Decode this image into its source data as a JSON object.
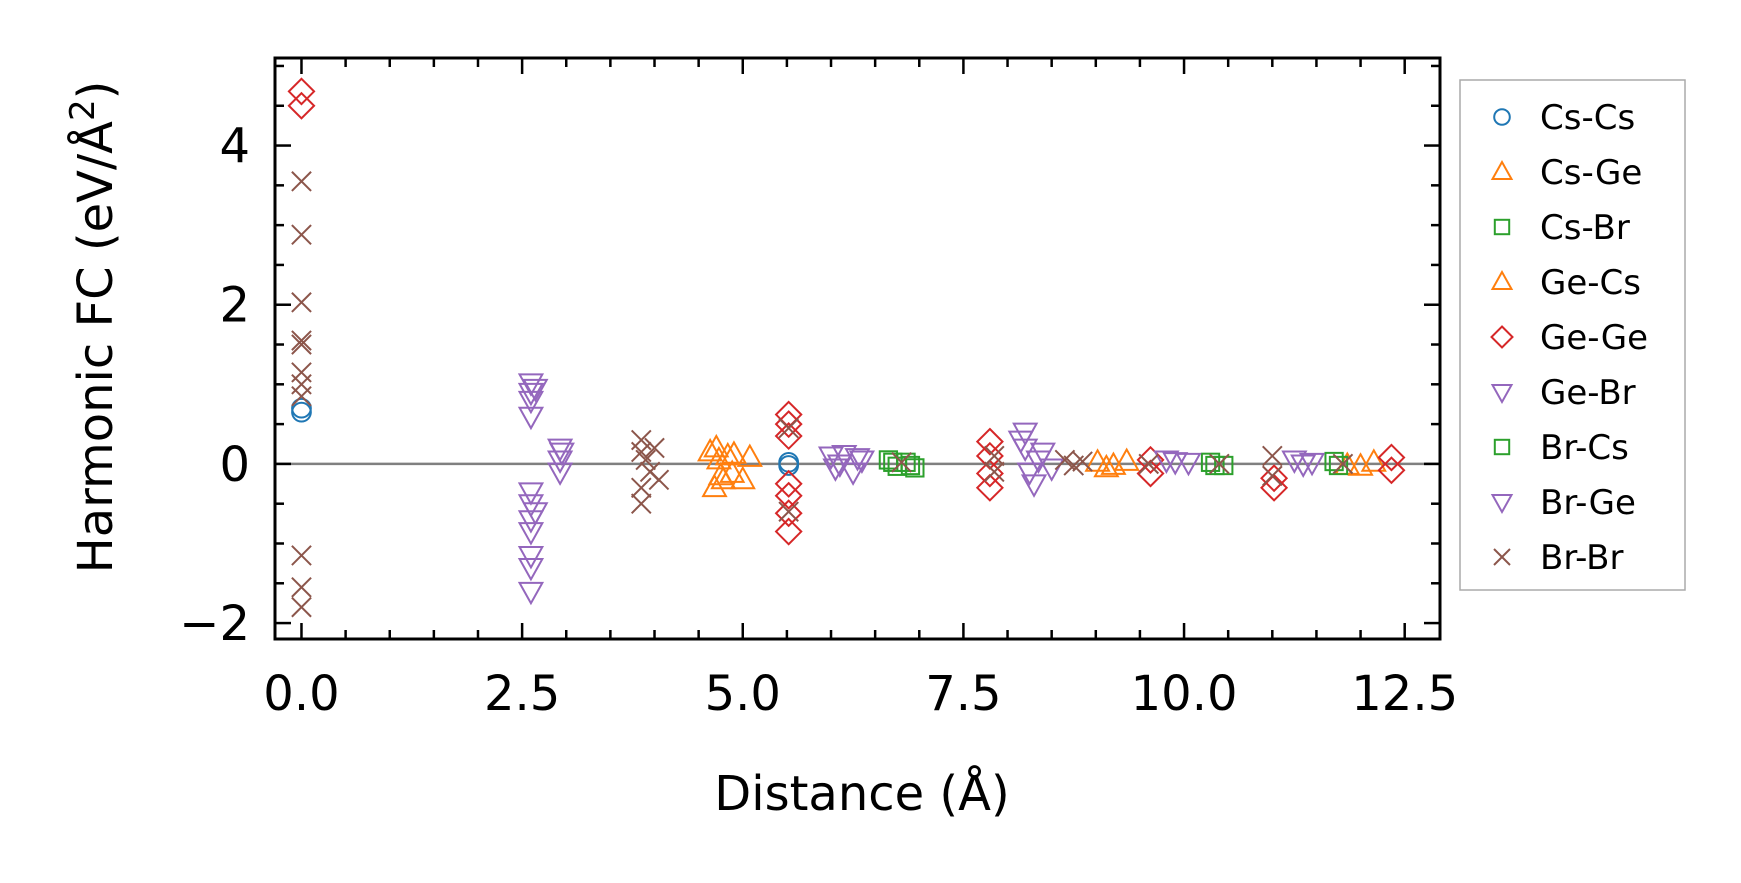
{
  "chart_data": {
    "type": "scatter",
    "title": "",
    "xlabel": "Distance (Å)",
    "ylabel_main": "Harmonic FC (eV/Å",
    "ylabel_sup": "2",
    "ylabel_end": ")",
    "xlim": [
      -0.3,
      12.9
    ],
    "ylim": [
      -2.2,
      5.1
    ],
    "xticks": [
      0.0,
      2.5,
      5.0,
      7.5,
      10.0,
      12.5
    ],
    "xtick_labels": [
      "0.0",
      "2.5",
      "5.0",
      "7.5",
      "10.0",
      "12.5"
    ],
    "yticks": [
      -2,
      0,
      2,
      4
    ],
    "ytick_labels": [
      "−2",
      "0",
      "2",
      "4"
    ],
    "zero_line": 0,
    "legend_position": "outside right",
    "series": [
      {
        "name": "Cs-Cs",
        "marker": "circle",
        "color": "#1f77b4",
        "points": [
          [
            0.0,
            0.65
          ],
          [
            0.0,
            0.7
          ],
          [
            5.52,
            0.02
          ],
          [
            5.52,
            -0.02
          ]
        ]
      },
      {
        "name": "Cs-Ge",
        "marker": "triangle-up",
        "color": "#ff7f0e",
        "points": [
          [
            4.63,
            0.15
          ],
          [
            4.68,
            -0.3
          ],
          [
            4.73,
            0.05
          ],
          [
            4.78,
            -0.2
          ],
          [
            4.83,
            0.1
          ],
          [
            4.88,
            -0.12
          ],
          [
            9.02,
            0.02
          ],
          [
            9.12,
            -0.05
          ],
          [
            11.85,
            -0.02
          ]
        ]
      },
      {
        "name": "Cs-Br",
        "marker": "square",
        "color": "#2ca02c",
        "points": [
          [
            6.65,
            0.05
          ],
          [
            6.75,
            -0.03
          ],
          [
            6.85,
            0.02
          ],
          [
            6.95,
            -0.05
          ],
          [
            10.3,
            0.02
          ],
          [
            10.45,
            -0.02
          ],
          [
            11.7,
            0.03
          ]
        ]
      },
      {
        "name": "Ge-Cs",
        "marker": "triangle-up",
        "color": "#ff7f0e",
        "points": [
          [
            4.7,
            0.2
          ],
          [
            4.75,
            -0.15
          ],
          [
            4.9,
            0.12
          ],
          [
            5.0,
            -0.2
          ],
          [
            5.08,
            0.08
          ],
          [
            9.2,
            -0.02
          ],
          [
            9.35,
            0.03
          ],
          [
            12.0,
            -0.03
          ],
          [
            12.15,
            0.02
          ]
        ]
      },
      {
        "name": "Ge-Ge",
        "marker": "diamond",
        "color": "#d62728",
        "points": [
          [
            0.0,
            4.68
          ],
          [
            0.0,
            4.5
          ],
          [
            5.52,
            0.62
          ],
          [
            5.52,
            0.5
          ],
          [
            5.52,
            0.35
          ],
          [
            5.52,
            -0.25
          ],
          [
            5.52,
            -0.4
          ],
          [
            5.52,
            -0.62
          ],
          [
            5.52,
            -0.85
          ],
          [
            7.8,
            0.28
          ],
          [
            7.8,
            0.1
          ],
          [
            7.8,
            -0.12
          ],
          [
            7.8,
            -0.3
          ],
          [
            9.62,
            0.05
          ],
          [
            9.62,
            -0.12
          ],
          [
            11.02,
            -0.18
          ],
          [
            11.02,
            -0.3
          ],
          [
            12.35,
            0.08
          ],
          [
            12.35,
            -0.08
          ]
        ]
      },
      {
        "name": "Ge-Br",
        "marker": "triangle-down",
        "color": "#9467bd",
        "points": [
          [
            2.6,
            1.02
          ],
          [
            2.6,
            0.9
          ],
          [
            2.6,
            0.8
          ],
          [
            2.6,
            0.6
          ],
          [
            2.6,
            -0.35
          ],
          [
            2.6,
            -0.5
          ],
          [
            2.6,
            -0.7
          ],
          [
            2.6,
            -0.85
          ],
          [
            2.6,
            -1.15
          ],
          [
            2.6,
            -1.3
          ],
          [
            2.6,
            -1.6
          ],
          [
            2.93,
            0.2
          ],
          [
            2.93,
            0.05
          ],
          [
            2.93,
            -0.1
          ],
          [
            6.0,
            0.1
          ],
          [
            6.05,
            -0.05
          ],
          [
            6.15,
            0.12
          ],
          [
            6.25,
            -0.1
          ],
          [
            6.35,
            0.05
          ],
          [
            8.2,
            0.4
          ],
          [
            8.2,
            0.2
          ],
          [
            8.25,
            -0.1
          ],
          [
            8.3,
            -0.25
          ],
          [
            8.4,
            0.15
          ],
          [
            8.5,
            -0.05
          ],
          [
            9.8,
            0.05
          ],
          [
            10.05,
            0.02
          ],
          [
            11.25,
            0.05
          ],
          [
            11.45,
            0.02
          ]
        ]
      },
      {
        "name": "Br-Cs",
        "marker": "square",
        "color": "#2ca02c",
        "points": [
          [
            6.7,
            0.02
          ],
          [
            6.9,
            -0.02
          ],
          [
            10.35,
            -0.02
          ],
          [
            11.75,
            -0.02
          ]
        ]
      },
      {
        "name": "Br-Ge",
        "marker": "triangle-down",
        "color": "#9467bd",
        "points": [
          [
            2.65,
            0.95
          ],
          [
            2.65,
            -0.6
          ],
          [
            2.95,
            0.15
          ],
          [
            6.1,
            0.0
          ],
          [
            6.3,
            0.08
          ],
          [
            8.15,
            0.3
          ],
          [
            8.35,
            0.05
          ],
          [
            9.9,
            0.03
          ],
          [
            11.35,
            0.0
          ]
        ]
      },
      {
        "name": "Br-Br",
        "marker": "x",
        "color": "#8c564b",
        "points": [
          [
            0.0,
            3.55
          ],
          [
            0.0,
            2.88
          ],
          [
            0.0,
            2.03
          ],
          [
            0.0,
            1.55
          ],
          [
            0.0,
            1.5
          ],
          [
            0.0,
            1.15
          ],
          [
            0.0,
            1.0
          ],
          [
            0.0,
            0.85
          ],
          [
            0.0,
            -1.15
          ],
          [
            0.0,
            -1.55
          ],
          [
            0.0,
            -1.8
          ],
          [
            3.85,
            0.3
          ],
          [
            3.85,
            0.15
          ],
          [
            3.85,
            -0.3
          ],
          [
            3.85,
            -0.5
          ],
          [
            3.9,
            0.05
          ],
          [
            3.95,
            -0.1
          ],
          [
            4.0,
            0.2
          ],
          [
            4.05,
            -0.2
          ],
          [
            5.52,
            0.45
          ],
          [
            5.52,
            -0.6
          ],
          [
            6.8,
            0.02
          ],
          [
            7.85,
            0.1
          ],
          [
            7.85,
            -0.1
          ],
          [
            8.65,
            0.05
          ],
          [
            8.75,
            -0.02
          ],
          [
            8.85,
            0.03
          ],
          [
            9.6,
            0.0
          ],
          [
            10.4,
            0.0
          ],
          [
            11.0,
            0.1
          ],
          [
            11.0,
            -0.15
          ],
          [
            11.8,
            0.0
          ]
        ]
      }
    ]
  }
}
